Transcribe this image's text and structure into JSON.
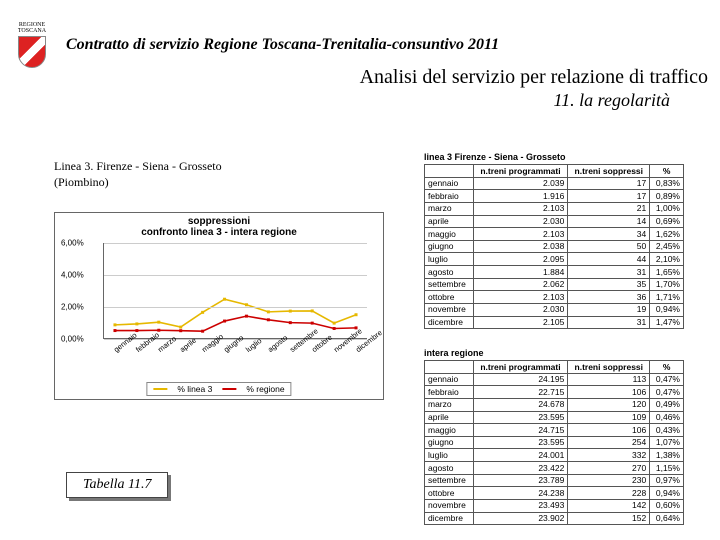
{
  "doc": {
    "logo_top": "REGIONE",
    "logo_bottom": "TOSCANA",
    "title": "Contratto di servizio Regione Toscana-Trenitalia-consuntivo 2011",
    "section": "Analisi del servizio per relazione di traffico",
    "subsection": "11. la regolarità",
    "line_label_1": "Linea 3. Firenze - Siena - Grosseto",
    "line_label_2": "(Piombino)",
    "caption": "Tabella 11.7"
  },
  "chart": {
    "title_l1": "soppressioni",
    "title_l2": "confronto linea 3 - intera regione",
    "ylim": [
      0,
      6
    ],
    "yticks": [
      0,
      2,
      4,
      6
    ],
    "ytick_labels": [
      "0,00%",
      "2,00%",
      "4,00%",
      "6,00%"
    ],
    "x_labels": [
      "gennaio",
      "febbraio",
      "marzo",
      "aprile",
      "maggio",
      "giugno",
      "luglio",
      "agosto",
      "settembre",
      "ottobre",
      "novembre",
      "dicembre"
    ],
    "series": [
      {
        "name": "% linea 3",
        "color": "#e6b800",
        "values": [
          0.83,
          0.89,
          1.0,
          0.69,
          1.62,
          2.45,
          2.1,
          1.65,
          1.7,
          1.71,
          0.94,
          1.47
        ]
      },
      {
        "name": "% regione",
        "color": "#cc0000",
        "values": [
          0.47,
          0.47,
          0.49,
          0.46,
          0.43,
          1.07,
          1.38,
          1.15,
          0.97,
          0.94,
          0.6,
          0.64
        ]
      }
    ],
    "legend": [
      {
        "swatch": "#e6b800",
        "label": "% linea 3"
      },
      {
        "swatch": "#cc0000",
        "label": "% regione"
      }
    ],
    "colors": {
      "grid": "#cccccc",
      "axis": "#666666",
      "bg": "#ffffff"
    }
  },
  "table_linea3": {
    "title": "linea 3 Firenze - Siena - Grosseto",
    "headers": [
      "",
      "n.treni programmati",
      "n.treni soppressi",
      "%"
    ],
    "rows": [
      [
        "gennaio",
        "2.039",
        "17",
        "0,83%"
      ],
      [
        "febbraio",
        "1.916",
        "17",
        "0,89%"
      ],
      [
        "marzo",
        "2.103",
        "21",
        "1,00%"
      ],
      [
        "aprile",
        "2.030",
        "14",
        "0,69%"
      ],
      [
        "maggio",
        "2.103",
        "34",
        "1,62%"
      ],
      [
        "giugno",
        "2.038",
        "50",
        "2,45%"
      ],
      [
        "luglio",
        "2.095",
        "44",
        "2,10%"
      ],
      [
        "agosto",
        "1.884",
        "31",
        "1,65%"
      ],
      [
        "settembre",
        "2.062",
        "35",
        "1,70%"
      ],
      [
        "ottobre",
        "2.103",
        "36",
        "1,71%"
      ],
      [
        "novembre",
        "2.030",
        "19",
        "0,94%"
      ],
      [
        "dicembre",
        "2.105",
        "31",
        "1,47%"
      ]
    ]
  },
  "table_regione": {
    "title": "intera regione",
    "headers": [
      "",
      "n.treni programmati",
      "n.treni soppressi",
      "%"
    ],
    "rows": [
      [
        "gennaio",
        "24.195",
        "113",
        "0,47%"
      ],
      [
        "febbraio",
        "22.715",
        "106",
        "0,47%"
      ],
      [
        "marzo",
        "24.678",
        "120",
        "0,49%"
      ],
      [
        "aprile",
        "23.595",
        "109",
        "0,46%"
      ],
      [
        "maggio",
        "24.715",
        "106",
        "0,43%"
      ],
      [
        "giugno",
        "23.595",
        "254",
        "1,07%"
      ],
      [
        "luglio",
        "24.001",
        "332",
        "1,38%"
      ],
      [
        "agosto",
        "23.422",
        "270",
        "1,15%"
      ],
      [
        "settembre",
        "23.789",
        "230",
        "0,97%"
      ],
      [
        "ottobre",
        "24.238",
        "228",
        "0,94%"
      ],
      [
        "novembre",
        "23.493",
        "142",
        "0,60%"
      ],
      [
        "dicembre",
        "23.902",
        "152",
        "0,64%"
      ]
    ]
  }
}
